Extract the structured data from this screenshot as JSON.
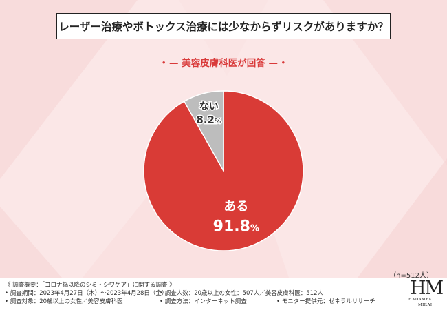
{
  "title": "レーザー治療やボトックス治療には少なからずリスクがありますか？",
  "subtitle": {
    "bullet": "•",
    "dash": "—",
    "text": "美容皮膚科医が回答"
  },
  "n_label": "（n=512人）",
  "chart_data": {
    "type": "pie",
    "slices": [
      {
        "label": "ある",
        "value": 91.8,
        "display": "91.8",
        "unit": "%",
        "color": "#d93b36"
      },
      {
        "label": "ない",
        "value": 8.2,
        "display": "8.2",
        "unit": "%",
        "color": "#bdbdbd"
      }
    ],
    "start": "12 o'clock",
    "direction": "clockwise"
  },
  "footer": {
    "line1": "《 調査概要：「コロナ禍以降のシミ・シワケア」に関する調査 》",
    "period": "• 調査期間：2023年4月27日（木）〜2023年4月28日（金）",
    "respondents": "• 調査人数：20歳以上の女性：507人／美容皮膚科医：512人",
    "target": "• 調査対象：20歳以上の女性／美容皮膚科医",
    "method": "• 調査方法：インターネット調査",
    "provider": "• モニター提供元：ゼネラルリサーチ"
  },
  "logo": {
    "mark": "HM",
    "line1": "HADAMEKI",
    "line2": "MIRAI"
  }
}
